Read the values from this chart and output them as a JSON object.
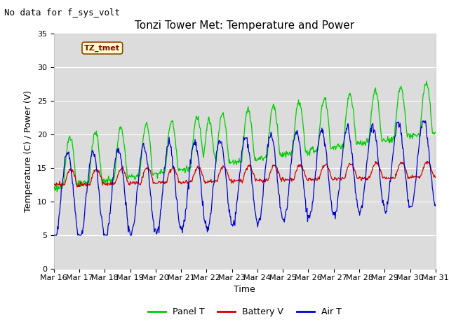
{
  "title": "Tonzi Tower Met: Temperature and Power",
  "subtitle": "No data for f_sys_volt",
  "xlabel": "Time",
  "ylabel": "Temperature (C) / Power (V)",
  "annotation": "TZ_tmet",
  "ylim": [
    0,
    35
  ],
  "yticks": [
    0,
    5,
    10,
    15,
    20,
    25,
    30,
    35
  ],
  "n_days": 15,
  "xtick_labels": [
    "Mar 16",
    "Mar 17",
    "Mar 18",
    "Mar 19",
    "Mar 20",
    "Mar 21",
    "Mar 22",
    "Mar 23",
    "Mar 24",
    "Mar 25",
    "Mar 26",
    "Mar 27",
    "Mar 28",
    "Mar 29",
    "Mar 30",
    "Mar 31"
  ],
  "bg_color": "#dcdcdc",
  "panel_color": "#00cc00",
  "battery_color": "#cc0000",
  "air_color": "#0000cc",
  "legend_labels": [
    "Panel T",
    "Battery V",
    "Air T"
  ],
  "title_fontsize": 11,
  "axis_label_fontsize": 9,
  "tick_fontsize": 8,
  "legend_fontsize": 9,
  "subtitle_fontsize": 9,
  "annot_fontsize": 8
}
